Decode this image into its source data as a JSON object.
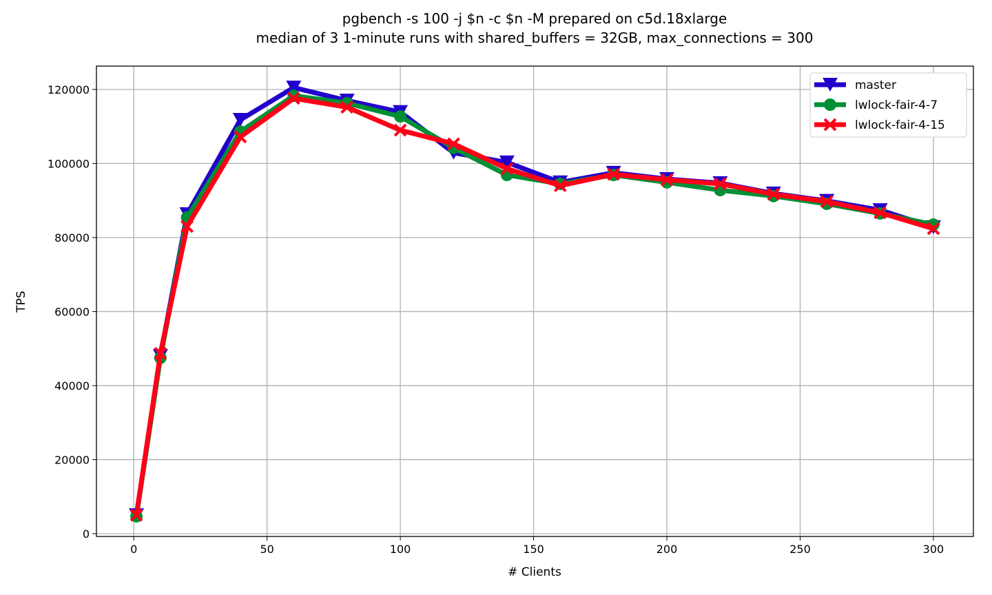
{
  "chart_data": {
    "type": "line",
    "title": "pgbench -s 100 -j $n -c $n -M prepared on c5d.18xlarge",
    "subtitle": "median of 3 1-minute runs with shared_buffers = 32GB, max_connections = 300",
    "xlabel": "# Clients",
    "ylabel": "TPS",
    "xlim": [
      -14,
      315
    ],
    "ylim": [
      -750,
      126300
    ],
    "xticks": [
      0,
      50,
      100,
      150,
      200,
      250,
      300
    ],
    "yticks": [
      0,
      20000,
      40000,
      60000,
      80000,
      100000,
      120000
    ],
    "grid": true,
    "legend_position": "top-right",
    "x": [
      1,
      10,
      20,
      40,
      60,
      80,
      100,
      120,
      140,
      160,
      180,
      200,
      220,
      240,
      260,
      280,
      300
    ],
    "series": [
      {
        "name": "master",
        "color": "#2200cc",
        "marker": "triangle-down",
        "values": [
          5000,
          48000,
          86300,
          111800,
          120500,
          117000,
          113900,
          102900,
          100300,
          94900,
          97500,
          95800,
          94700,
          91900,
          89900,
          87400,
          82800
        ]
      },
      {
        "name": "lwlock-fair-4-7",
        "color": "#008f35",
        "marker": "circle",
        "values": [
          4700,
          47500,
          85400,
          108600,
          118300,
          116300,
          112700,
          104200,
          96900,
          94500,
          96900,
          94900,
          92800,
          91200,
          89100,
          86500,
          83500
        ]
      },
      {
        "name": "lwlock-fair-4-15",
        "color": "#ff0018",
        "marker": "x",
        "values": [
          5000,
          48700,
          83000,
          107200,
          117600,
          115200,
          109000,
          105300,
          98600,
          94000,
          97100,
          95600,
          94500,
          91700,
          89700,
          86700,
          82400
        ]
      }
    ]
  }
}
